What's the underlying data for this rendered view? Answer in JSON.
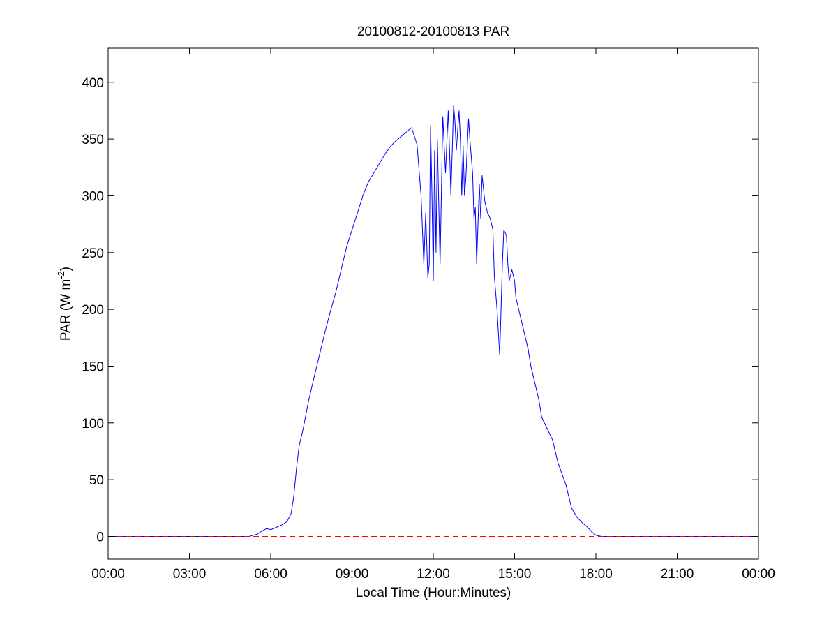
{
  "chart_data": {
    "type": "line",
    "title": "20100812-20100813 PAR",
    "xlabel": "Local Time (Hour:Minutes)",
    "ylabel_main": "PAR (W m",
    "ylabel_sup": "-2",
    "ylabel_close": ")",
    "xlim": [
      0,
      24
    ],
    "ylim": [
      -20,
      430
    ],
    "x_ticks": [
      0,
      3,
      6,
      9,
      12,
      15,
      18,
      21,
      24
    ],
    "x_tick_labels": [
      "00:00",
      "03:00",
      "06:00",
      "09:00",
      "12:00",
      "15:00",
      "18:00",
      "21:00",
      "00:00"
    ],
    "y_ticks": [
      0,
      50,
      100,
      150,
      200,
      250,
      300,
      350,
      400
    ],
    "y_tick_labels": [
      "0",
      "50",
      "100",
      "150",
      "200",
      "250",
      "300",
      "350",
      "400"
    ],
    "grid": false,
    "series": [
      {
        "color": "#0000ff",
        "style": "solid",
        "x": [
          0,
          5.2,
          5.5,
          5.7,
          5.85,
          6.0,
          6.2,
          6.4,
          6.6,
          6.75,
          6.85,
          6.95,
          7.05,
          7.2,
          7.4,
          7.6,
          7.8,
          8.0,
          8.2,
          8.4,
          8.6,
          8.8,
          9.0,
          9.2,
          9.4,
          9.6,
          9.8,
          10.0,
          10.2,
          10.4,
          10.6,
          10.8,
          11.0,
          11.2,
          11.4,
          11.55,
          11.65,
          11.72,
          11.8,
          11.85,
          11.9,
          11.95,
          12.0,
          12.05,
          12.1,
          12.15,
          12.25,
          12.35,
          12.45,
          12.55,
          12.6,
          12.65,
          12.75,
          12.8,
          12.85,
          12.95,
          13.0,
          13.05,
          13.1,
          13.15,
          13.2,
          13.3,
          13.35,
          13.45,
          13.5,
          13.55,
          13.6,
          13.7,
          13.75,
          13.8,
          13.9,
          14.0,
          14.1,
          14.2,
          14.25,
          14.35,
          14.45,
          14.5,
          14.55,
          14.6,
          14.7,
          14.75,
          14.8,
          14.9,
          15.0,
          15.05,
          15.1,
          15.2,
          15.3,
          15.4,
          15.5,
          15.6,
          15.75,
          15.9,
          16.0,
          16.2,
          16.4,
          16.5,
          16.6,
          16.75,
          16.9,
          17.0,
          17.1,
          17.3,
          17.5,
          17.7,
          17.85,
          18.0,
          18.2,
          18.4,
          18.6,
          18.8,
          19.0,
          19.2,
          24
        ],
        "values": [
          0,
          0,
          2,
          5,
          7,
          6,
          8,
          10,
          13,
          20,
          35,
          60,
          80,
          95,
          120,
          140,
          160,
          180,
          198,
          215,
          235,
          255,
          270,
          285,
          300,
          312,
          320,
          328,
          336,
          343,
          348,
          352,
          356,
          360,
          345,
          300,
          240,
          285,
          228,
          240,
          362,
          300,
          225,
          340,
          250,
          350,
          240,
          370,
          320,
          375,
          340,
          300,
          380,
          365,
          340,
          375,
          350,
          300,
          345,
          300,
          315,
          368,
          350,
          320,
          280,
          290,
          240,
          310,
          280,
          318,
          295,
          285,
          280,
          270,
          230,
          200,
          160,
          200,
          240,
          270,
          265,
          240,
          225,
          235,
          225,
          210,
          205,
          195,
          185,
          175,
          165,
          150,
          135,
          120,
          105,
          95,
          85,
          75,
          65,
          55,
          45,
          35,
          25,
          17,
          12,
          8,
          4,
          1,
          0,
          0,
          0,
          0,
          0,
          0,
          0
        ]
      },
      {
        "color": "#ff0000",
        "style": "dashed",
        "x": [
          0,
          24
        ],
        "values": [
          0,
          0
        ]
      }
    ]
  }
}
